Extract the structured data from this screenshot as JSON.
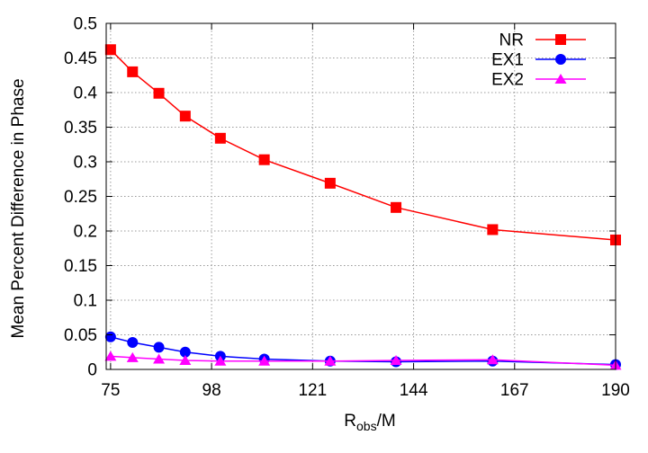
{
  "chart_data": {
    "type": "line",
    "title": "",
    "xlabel_main": "R",
    "xlabel_sub": "obs",
    "xlabel_tail": "/M",
    "ylabel": "Mean Percent Difference in Phase",
    "xlim": [
      74,
      190
    ],
    "ylim": [
      0,
      0.5
    ],
    "xticks": [
      75,
      98,
      121,
      144,
      167,
      190
    ],
    "xtick_labels": [
      "75",
      "98",
      "121",
      "144",
      "167",
      "190"
    ],
    "yticks": [
      0,
      0.05,
      0.1,
      0.15,
      0.2,
      0.25,
      0.3,
      0.35,
      0.4,
      0.45,
      0.5
    ],
    "ytick_labels": [
      "0",
      "0.05",
      "0.1",
      "0.15",
      "0.2",
      "0.25",
      "0.3",
      "0.35",
      "0.4",
      "0.45",
      "0.5"
    ],
    "grid": true,
    "legend_position": "top-right",
    "series": [
      {
        "name": "NR",
        "color": "#ff0000",
        "marker": "square",
        "x": [
          75,
          80,
          86,
          92,
          100,
          110,
          125,
          140,
          162,
          190
        ],
        "y": [
          0.462,
          0.43,
          0.399,
          0.366,
          0.334,
          0.303,
          0.269,
          0.234,
          0.202,
          0.187
        ]
      },
      {
        "name": "EX1",
        "color": "#0000ff",
        "marker": "circle",
        "x": [
          75,
          80,
          86,
          92,
          100,
          110,
          125,
          140,
          162,
          190
        ],
        "y": [
          0.047,
          0.039,
          0.032,
          0.025,
          0.019,
          0.015,
          0.012,
          0.011,
          0.012,
          0.007
        ]
      },
      {
        "name": "EX2",
        "color": "#ff00ff",
        "marker": "triangle",
        "x": [
          75,
          80,
          86,
          92,
          100,
          110,
          125,
          140,
          162,
          190
        ],
        "y": [
          0.019,
          0.017,
          0.015,
          0.013,
          0.012,
          0.012,
          0.012,
          0.013,
          0.014,
          0.006
        ]
      }
    ]
  }
}
